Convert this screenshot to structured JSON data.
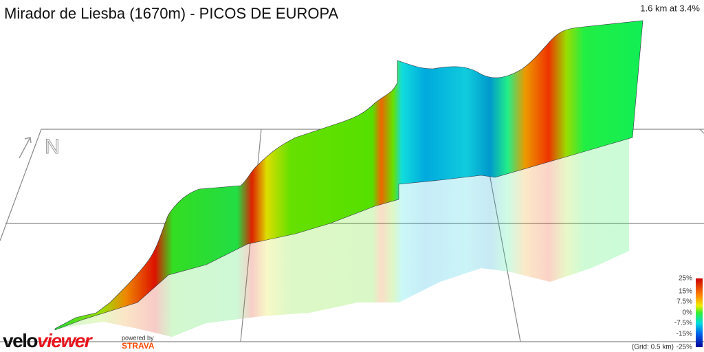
{
  "header": {
    "title": "Mirador de Liesba (1670m) - PICOS DE EUROPA",
    "stat": "1.6 km at 3.4%"
  },
  "compass": "N",
  "legend": {
    "labels": [
      "25%",
      "15%",
      "7.5%",
      "0%",
      "-7.5%",
      "-15%",
      "-25%"
    ],
    "grid_note": "(Grid: 0.5 km)"
  },
  "branding": {
    "logo_a": "velo",
    "logo_b": "viewer",
    "powered": "powered by",
    "strava": "STRAVA"
  }
}
